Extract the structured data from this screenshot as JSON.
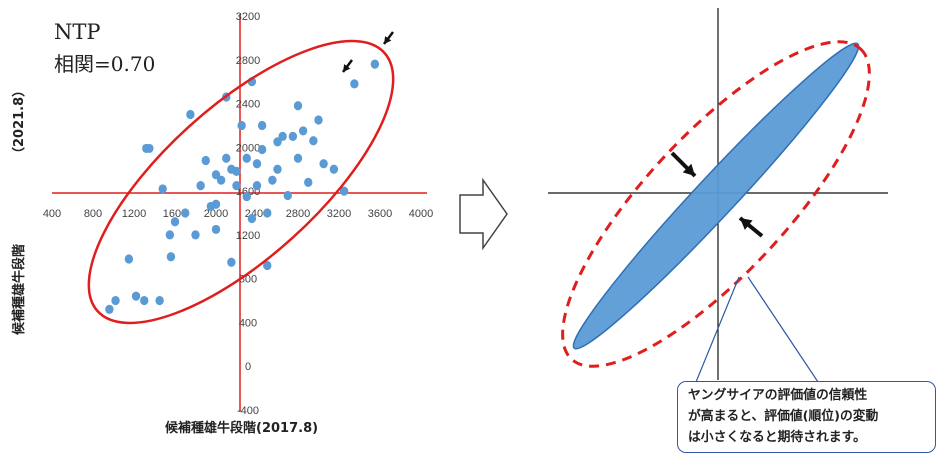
{
  "chart_data": [
    {
      "type": "scatter",
      "title_line1": "NTP",
      "title_line2": "相関=0.70",
      "xlabel": "候補種雄牛段階",
      "xlabel_suffix": "(2017.8)",
      "ylabel": "候補種雄牛段階",
      "ylabel_suffix": "（2021.8）",
      "x_ticks": [
        "400",
        "800",
        "1200",
        "1600",
        "2000",
        "2400",
        "2800",
        "3200",
        "3600",
        "4000"
      ],
      "y_ticks": [
        "-400",
        "0",
        "400",
        "800",
        "1200",
        "1600",
        "2000",
        "2400",
        "2800",
        "3200"
      ],
      "xlim": [
        400,
        4000
      ],
      "ylim": [
        -400,
        3200
      ],
      "grid": false,
      "points": [
        {
          "x": 960,
          "y": 520
        },
        {
          "x": 1020,
          "y": 600
        },
        {
          "x": 1150,
          "y": 980
        },
        {
          "x": 1220,
          "y": 640
        },
        {
          "x": 1300,
          "y": 600
        },
        {
          "x": 1320,
          "y": 1990
        },
        {
          "x": 1350,
          "y": 1990
        },
        {
          "x": 1450,
          "y": 600
        },
        {
          "x": 1480,
          "y": 1620
        },
        {
          "x": 1550,
          "y": 1200
        },
        {
          "x": 1560,
          "y": 1000
        },
        {
          "x": 1600,
          "y": 1320
        },
        {
          "x": 1700,
          "y": 1400
        },
        {
          "x": 1750,
          "y": 2300
        },
        {
          "x": 1800,
          "y": 1200
        },
        {
          "x": 1850,
          "y": 1650
        },
        {
          "x": 1900,
          "y": 1880
        },
        {
          "x": 1950,
          "y": 1460
        },
        {
          "x": 2000,
          "y": 1250
        },
        {
          "x": 2000,
          "y": 1750
        },
        {
          "x": 2050,
          "y": 1700
        },
        {
          "x": 2100,
          "y": 2460
        },
        {
          "x": 2100,
          "y": 1900
        },
        {
          "x": 2150,
          "y": 950
        },
        {
          "x": 2150,
          "y": 1800
        },
        {
          "x": 2200,
          "y": 1650
        },
        {
          "x": 2250,
          "y": 2200
        },
        {
          "x": 2300,
          "y": 1900
        },
        {
          "x": 2300,
          "y": 1550
        },
        {
          "x": 2350,
          "y": 2600
        },
        {
          "x": 2400,
          "y": 1850
        },
        {
          "x": 2400,
          "y": 1650
        },
        {
          "x": 2450,
          "y": 2200
        },
        {
          "x": 2450,
          "y": 1980
        },
        {
          "x": 2500,
          "y": 920
        },
        {
          "x": 2500,
          "y": 1400
        },
        {
          "x": 2550,
          "y": 1700
        },
        {
          "x": 2600,
          "y": 2050
        },
        {
          "x": 2600,
          "y": 1800
        },
        {
          "x": 2650,
          "y": 2100
        },
        {
          "x": 2700,
          "y": 1560
        },
        {
          "x": 2750,
          "y": 2100
        },
        {
          "x": 2800,
          "y": 1900
        },
        {
          "x": 2800,
          "y": 2380
        },
        {
          "x": 2850,
          "y": 2150
        },
        {
          "x": 2900,
          "y": 1680
        },
        {
          "x": 2950,
          "y": 2060
        },
        {
          "x": 3000,
          "y": 2250
        },
        {
          "x": 3050,
          "y": 1850
        },
        {
          "x": 3150,
          "y": 1800
        },
        {
          "x": 3250,
          "y": 1600
        },
        {
          "x": 3350,
          "y": 2580
        },
        {
          "x": 3550,
          "y": 2760
        },
        {
          "x": 2000,
          "y": 1480
        },
        {
          "x": 2350,
          "y": 1350
        },
        {
          "x": 2200,
          "y": 1780
        }
      ],
      "ellipse": {
        "color": "#e01e1e"
      },
      "arrows": 2
    },
    {
      "type": "diagram",
      "ellipse_fill": "#5b9bd5",
      "ellipse_stroke": "#2e6fb5",
      "dashed_ellipse_color": "#e01e1e",
      "callout_lines": [
        "ヤングサイアの評価値の信頼性",
        "が高まると、評価値(順位)の変動",
        "は小さくなると期待されます。"
      ]
    }
  ],
  "colors": {
    "points": "#5b9bd5",
    "axis_red": "#e01e1e",
    "axis_black": "#111111",
    "arrow_outline": "#2e58a6"
  },
  "icons": {
    "transition": "right-arrow-outline-icon"
  }
}
